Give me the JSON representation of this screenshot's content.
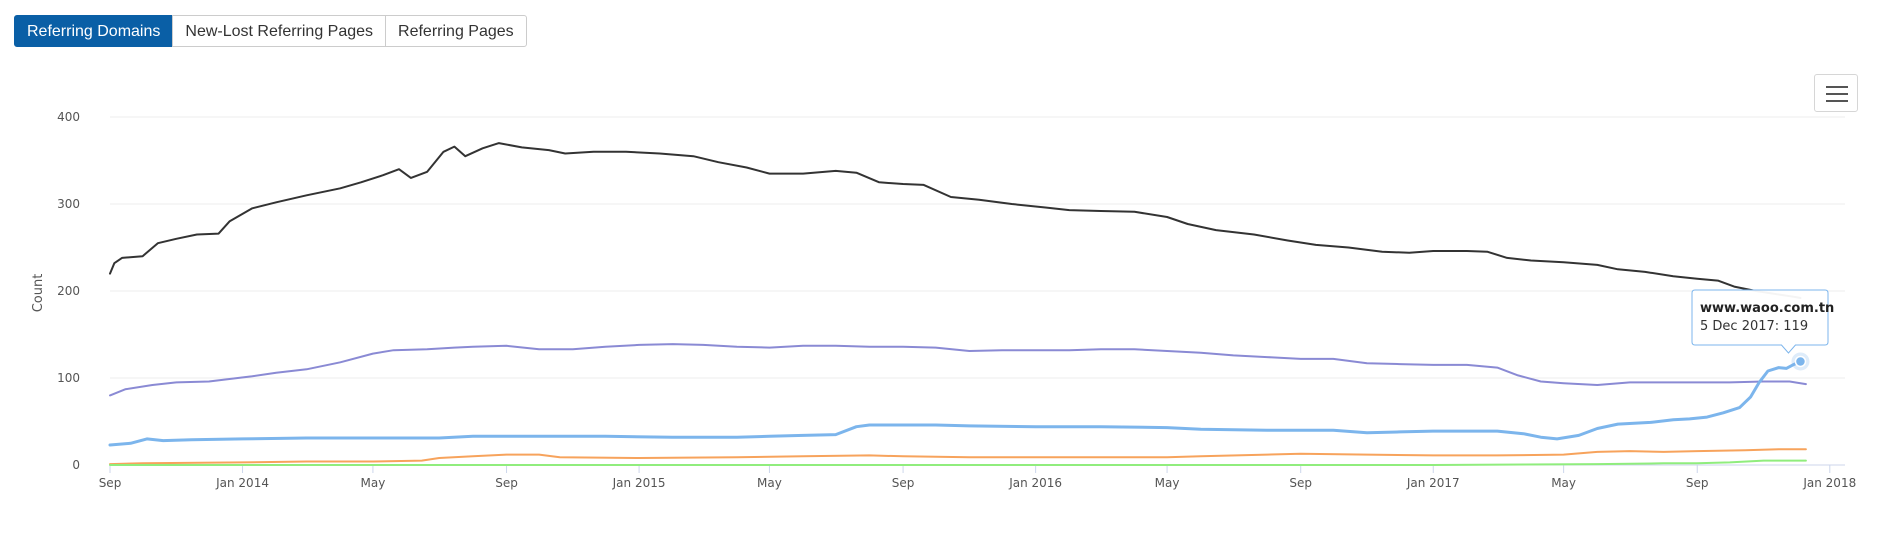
{
  "tabs": [
    {
      "label": "Referring Domains",
      "active": true
    },
    {
      "label": "New-Lost Referring Pages",
      "active": false
    },
    {
      "label": "Referring Pages",
      "active": false
    }
  ],
  "menu_icon": "hamburger-menu-icon",
  "tooltip": {
    "title": "www.waoo.com.tn",
    "body": "5 Dec 2017: 119"
  },
  "chart_data": {
    "type": "line",
    "ylabel": "Count",
    "ylim": [
      0,
      400
    ],
    "yticks": [
      0,
      100,
      200,
      300,
      400
    ],
    "xlim": [
      "2013-09-01",
      "2018-01-15"
    ],
    "xticks": [
      {
        "date": "2013-09-01",
        "label": "Sep"
      },
      {
        "date": "2014-01-01",
        "label": "Jan 2014"
      },
      {
        "date": "2014-05-01",
        "label": "May"
      },
      {
        "date": "2014-09-01",
        "label": "Sep"
      },
      {
        "date": "2015-01-01",
        "label": "Jan 2015"
      },
      {
        "date": "2015-05-01",
        "label": "May"
      },
      {
        "date": "2015-09-01",
        "label": "Sep"
      },
      {
        "date": "2016-01-01",
        "label": "Jan 2016"
      },
      {
        "date": "2016-05-01",
        "label": "May"
      },
      {
        "date": "2016-09-01",
        "label": "Sep"
      },
      {
        "date": "2017-01-01",
        "label": "Jan 2017"
      },
      {
        "date": "2017-05-01",
        "label": "May"
      },
      {
        "date": "2017-09-01",
        "label": "Sep"
      },
      {
        "date": "2018-01-01",
        "label": "Jan 2018"
      }
    ],
    "grid": true,
    "series": [
      {
        "color": "#333333",
        "points": [
          [
            "2013-09-01",
            220
          ],
          [
            "2013-09-05",
            232
          ],
          [
            "2013-09-12",
            238
          ],
          [
            "2013-10-01",
            240
          ],
          [
            "2013-10-15",
            255
          ],
          [
            "2013-11-01",
            260
          ],
          [
            "2013-11-20",
            265
          ],
          [
            "2013-12-10",
            266
          ],
          [
            "2013-12-20",
            280
          ],
          [
            "2014-01-10",
            295
          ],
          [
            "2014-02-01",
            302
          ],
          [
            "2014-03-01",
            310
          ],
          [
            "2014-04-01",
            318
          ],
          [
            "2014-04-20",
            325
          ],
          [
            "2014-05-10",
            333
          ],
          [
            "2014-05-25",
            340
          ],
          [
            "2014-06-05",
            330
          ],
          [
            "2014-06-20",
            337
          ],
          [
            "2014-07-05",
            360
          ],
          [
            "2014-07-15",
            366
          ],
          [
            "2014-07-25",
            355
          ],
          [
            "2014-08-10",
            364
          ],
          [
            "2014-08-25",
            370
          ],
          [
            "2014-09-15",
            365
          ],
          [
            "2014-10-10",
            362
          ],
          [
            "2014-10-25",
            358
          ],
          [
            "2014-11-20",
            360
          ],
          [
            "2014-12-20",
            360
          ],
          [
            "2015-01-20",
            358
          ],
          [
            "2015-02-20",
            355
          ],
          [
            "2015-03-15",
            348
          ],
          [
            "2015-04-10",
            342
          ],
          [
            "2015-05-01",
            335
          ],
          [
            "2015-06-01",
            335
          ],
          [
            "2015-07-01",
            338
          ],
          [
            "2015-07-20",
            336
          ],
          [
            "2015-08-10",
            325
          ],
          [
            "2015-09-01",
            323
          ],
          [
            "2015-09-20",
            322
          ],
          [
            "2015-10-15",
            308
          ],
          [
            "2015-11-10",
            305
          ],
          [
            "2015-12-10",
            300
          ],
          [
            "2016-01-10",
            296
          ],
          [
            "2016-02-01",
            293
          ],
          [
            "2016-03-01",
            292
          ],
          [
            "2016-04-01",
            291
          ],
          [
            "2016-05-01",
            285
          ],
          [
            "2016-05-20",
            277
          ],
          [
            "2016-06-15",
            270
          ],
          [
            "2016-07-20",
            265
          ],
          [
            "2016-08-20",
            258
          ],
          [
            "2016-09-15",
            253
          ],
          [
            "2016-10-15",
            250
          ],
          [
            "2016-11-15",
            245
          ],
          [
            "2016-12-10",
            244
          ],
          [
            "2017-01-01",
            246
          ],
          [
            "2017-02-01",
            246
          ],
          [
            "2017-02-20",
            245
          ],
          [
            "2017-03-10",
            238
          ],
          [
            "2017-04-01",
            235
          ],
          [
            "2017-05-01",
            233
          ],
          [
            "2017-06-01",
            230
          ],
          [
            "2017-06-20",
            225
          ],
          [
            "2017-07-15",
            222
          ],
          [
            "2017-08-10",
            217
          ],
          [
            "2017-09-01",
            214
          ],
          [
            "2017-09-20",
            212
          ],
          [
            "2017-10-05",
            205
          ],
          [
            "2017-10-25",
            200
          ],
          [
            "2017-11-15",
            196
          ],
          [
            "2017-12-01",
            193
          ],
          [
            "2017-12-05",
            192
          ]
        ]
      },
      {
        "color": "#8a8ad4",
        "points": [
          [
            "2013-09-01",
            80
          ],
          [
            "2013-09-15",
            87
          ],
          [
            "2013-10-10",
            92
          ],
          [
            "2013-11-01",
            95
          ],
          [
            "2013-12-01",
            96
          ],
          [
            "2014-01-10",
            102
          ],
          [
            "2014-02-01",
            106
          ],
          [
            "2014-03-01",
            110
          ],
          [
            "2014-04-01",
            118
          ],
          [
            "2014-05-01",
            128
          ],
          [
            "2014-05-20",
            132
          ],
          [
            "2014-06-20",
            133
          ],
          [
            "2014-07-15",
            135
          ],
          [
            "2014-08-01",
            136
          ],
          [
            "2014-09-01",
            137
          ],
          [
            "2014-10-01",
            133
          ],
          [
            "2014-11-01",
            133
          ],
          [
            "2014-12-01",
            136
          ],
          [
            "2015-01-01",
            138
          ],
          [
            "2015-02-01",
            139
          ],
          [
            "2015-03-01",
            138
          ],
          [
            "2015-04-01",
            136
          ],
          [
            "2015-05-01",
            135
          ],
          [
            "2015-06-01",
            137
          ],
          [
            "2015-07-01",
            137
          ],
          [
            "2015-08-01",
            136
          ],
          [
            "2015-09-01",
            136
          ],
          [
            "2015-10-01",
            135
          ],
          [
            "2015-11-01",
            131
          ],
          [
            "2015-12-01",
            132
          ],
          [
            "2016-01-01",
            132
          ],
          [
            "2016-02-01",
            132
          ],
          [
            "2016-03-01",
            133
          ],
          [
            "2016-04-01",
            133
          ],
          [
            "2016-05-01",
            131
          ],
          [
            "2016-06-01",
            129
          ],
          [
            "2016-07-01",
            126
          ],
          [
            "2016-08-01",
            124
          ],
          [
            "2016-09-01",
            122
          ],
          [
            "2016-10-01",
            122
          ],
          [
            "2016-11-01",
            117
          ],
          [
            "2016-12-01",
            116
          ],
          [
            "2017-01-01",
            115
          ],
          [
            "2017-02-01",
            115
          ],
          [
            "2017-03-01",
            112
          ],
          [
            "2017-03-20",
            103
          ],
          [
            "2017-04-10",
            96
          ],
          [
            "2017-05-01",
            94
          ],
          [
            "2017-06-01",
            92
          ],
          [
            "2017-07-01",
            95
          ],
          [
            "2017-08-01",
            95
          ],
          [
            "2017-09-01",
            95
          ],
          [
            "2017-10-01",
            95
          ],
          [
            "2017-11-01",
            96
          ],
          [
            "2017-11-25",
            96
          ],
          [
            "2017-12-10",
            93
          ]
        ]
      },
      {
        "color": "#7cb5ec",
        "points": [
          [
            "2013-09-01",
            23
          ],
          [
            "2013-09-20",
            25
          ],
          [
            "2013-10-05",
            30
          ],
          [
            "2013-10-20",
            28
          ],
          [
            "2013-11-15",
            29
          ],
          [
            "2014-01-01",
            30
          ],
          [
            "2014-03-01",
            31
          ],
          [
            "2014-05-01",
            31
          ],
          [
            "2014-07-01",
            31
          ],
          [
            "2014-08-01",
            33
          ],
          [
            "2014-10-01",
            33
          ],
          [
            "2014-12-01",
            33
          ],
          [
            "2015-02-01",
            32
          ],
          [
            "2015-04-01",
            32
          ],
          [
            "2015-05-01",
            33
          ],
          [
            "2015-06-01",
            34
          ],
          [
            "2015-07-01",
            35
          ],
          [
            "2015-07-20",
            44
          ],
          [
            "2015-08-01",
            46
          ],
          [
            "2015-09-01",
            46
          ],
          [
            "2015-10-01",
            46
          ],
          [
            "2015-11-01",
            45
          ],
          [
            "2016-01-01",
            44
          ],
          [
            "2016-03-01",
            44
          ],
          [
            "2016-05-01",
            43
          ],
          [
            "2016-06-01",
            41
          ],
          [
            "2016-08-01",
            40
          ],
          [
            "2016-10-01",
            40
          ],
          [
            "2016-11-01",
            37
          ],
          [
            "2016-12-01",
            38
          ],
          [
            "2017-01-01",
            39
          ],
          [
            "2017-03-01",
            39
          ],
          [
            "2017-03-25",
            36
          ],
          [
            "2017-04-10",
            32
          ],
          [
            "2017-04-25",
            30
          ],
          [
            "2017-05-15",
            34
          ],
          [
            "2017-06-01",
            42
          ],
          [
            "2017-06-20",
            47
          ],
          [
            "2017-07-20",
            49
          ],
          [
            "2017-08-10",
            52
          ],
          [
            "2017-08-25",
            53
          ],
          [
            "2017-09-10",
            55
          ],
          [
            "2017-09-25",
            60
          ],
          [
            "2017-10-10",
            66
          ],
          [
            "2017-10-20",
            78
          ],
          [
            "2017-10-28",
            95
          ],
          [
            "2017-11-05",
            108
          ],
          [
            "2017-11-15",
            112
          ],
          [
            "2017-11-22",
            111
          ],
          [
            "2017-11-28",
            115
          ],
          [
            "2017-12-05",
            119
          ]
        ]
      },
      {
        "color": "#f7a35c",
        "points": [
          [
            "2013-09-01",
            1
          ],
          [
            "2013-10-01",
            2
          ],
          [
            "2014-01-01",
            3
          ],
          [
            "2014-03-01",
            4
          ],
          [
            "2014-05-01",
            4
          ],
          [
            "2014-06-15",
            5
          ],
          [
            "2014-07-01",
            8
          ],
          [
            "2014-08-01",
            10
          ],
          [
            "2014-09-01",
            12
          ],
          [
            "2014-10-01",
            12
          ],
          [
            "2014-10-20",
            9
          ],
          [
            "2015-01-01",
            8
          ],
          [
            "2015-04-01",
            9
          ],
          [
            "2015-06-01",
            10
          ],
          [
            "2015-08-01",
            11
          ],
          [
            "2015-09-01",
            10
          ],
          [
            "2015-11-01",
            9
          ],
          [
            "2016-01-01",
            9
          ],
          [
            "2016-03-01",
            9
          ],
          [
            "2016-05-01",
            9
          ],
          [
            "2016-06-01",
            10
          ],
          [
            "2016-08-01",
            12
          ],
          [
            "2016-09-01",
            13
          ],
          [
            "2016-11-01",
            12
          ],
          [
            "2017-01-01",
            11
          ],
          [
            "2017-03-01",
            11
          ],
          [
            "2017-05-01",
            12
          ],
          [
            "2017-06-01",
            15
          ],
          [
            "2017-07-01",
            16
          ],
          [
            "2017-08-01",
            15
          ],
          [
            "2017-09-01",
            16
          ],
          [
            "2017-10-15",
            17
          ],
          [
            "2017-11-15",
            18
          ],
          [
            "2017-12-10",
            18
          ]
        ]
      },
      {
        "color": "#90ed7d",
        "points": [
          [
            "2013-09-01",
            0
          ],
          [
            "2014-01-01",
            0
          ],
          [
            "2015-01-01",
            0
          ],
          [
            "2016-01-01",
            0
          ],
          [
            "2017-01-01",
            0
          ],
          [
            "2017-06-01",
            1
          ],
          [
            "2017-08-01",
            2
          ],
          [
            "2017-09-01",
            2
          ],
          [
            "2017-10-01",
            3
          ],
          [
            "2017-11-01",
            5
          ],
          [
            "2017-12-10",
            5
          ]
        ]
      }
    ],
    "highlight": {
      "series": 2,
      "date": "2017-12-05",
      "value": 119
    }
  }
}
